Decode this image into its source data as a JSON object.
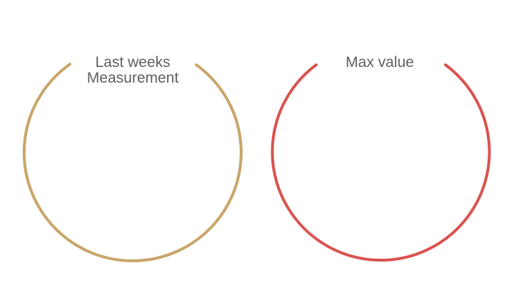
{
  "rings": [
    {
      "label_lines": [
        "Last weeks",
        "Measurement"
      ],
      "color": "#c9a56a"
    },
    {
      "label_lines": [
        "Max value"
      ],
      "color": "#d9534f"
    }
  ]
}
